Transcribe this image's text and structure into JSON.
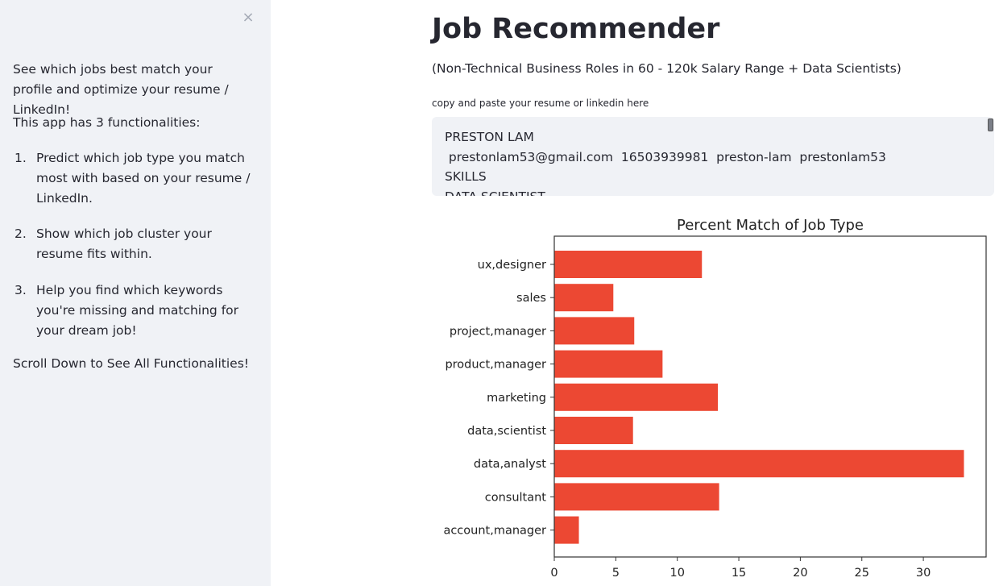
{
  "sidebar": {
    "close_icon": "×",
    "intro": "See which jobs best match your profile and optimize your resume / LinkedIn!",
    "functionalities_heading": "This app has 3 functionalities:",
    "items": [
      {
        "number": "1.",
        "text": "Predict which job type you match most with based on your resume / LinkedIn."
      },
      {
        "number": "2.",
        "text": "Show which job cluster your resume fits within."
      },
      {
        "number": "3.",
        "text": "Help you find which keywords you're missing and matching for your dream job!"
      }
    ],
    "footer": "Scroll Down to See All Functionalities!"
  },
  "main": {
    "title": "Job Recommender",
    "subtitle": "(Non-Technical Business Roles in 60 - 120k Salary Range + Data Scientists)",
    "input_label": "copy and paste your resume or linkedin here",
    "resume_lines": [
      "PRESTON LAM",
      " prestonlam53@gmail.com  16503939981  preston-lam  prestonlam53",
      "SKILLS",
      "DATA SCIENTIST"
    ]
  },
  "chart_data": {
    "type": "bar",
    "orientation": "horizontal",
    "title": "Percent Match of Job Type",
    "categories": [
      "ux,designer",
      "sales",
      "project,manager",
      "product,manager",
      "marketing",
      "data,scientist",
      "data,analyst",
      "consultant",
      "account,manager"
    ],
    "values": [
      12.0,
      4.8,
      6.5,
      8.8,
      13.3,
      6.4,
      33.3,
      13.4,
      2.0
    ],
    "xlim": [
      0,
      35
    ],
    "xticks": [
      0,
      5,
      10,
      15,
      20,
      25,
      30
    ],
    "bar_color": "#ec4833",
    "grid": false
  }
}
